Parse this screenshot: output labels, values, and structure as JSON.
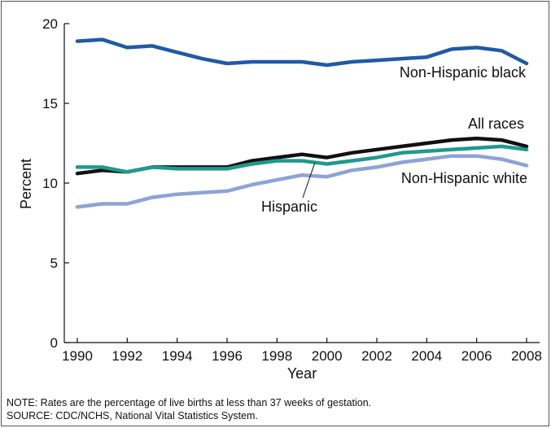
{
  "chart_data": {
    "type": "line",
    "title": "",
    "xlabel": "Year",
    "ylabel": "Percent",
    "xlim": [
      1990,
      2008
    ],
    "ylim": [
      0,
      20
    ],
    "x_ticks": [
      "1990",
      "1992",
      "1994",
      "1996",
      "1998",
      "2000",
      "2002",
      "2004",
      "2006",
      "2008"
    ],
    "y_ticks": [
      "0",
      "5",
      "10",
      "15",
      "20"
    ],
    "grid": false,
    "x": [
      1990,
      1991,
      1992,
      1993,
      1994,
      1995,
      1996,
      1997,
      1998,
      1999,
      2000,
      2001,
      2002,
      2003,
      2004,
      2005,
      2006,
      2007,
      2008
    ],
    "series": [
      {
        "name": "Non-Hispanic black",
        "color": "#1f5aa6",
        "values": [
          18.9,
          19.0,
          18.5,
          18.6,
          18.2,
          17.8,
          17.5,
          17.6,
          17.6,
          17.6,
          17.4,
          17.6,
          17.7,
          17.8,
          17.9,
          18.4,
          18.5,
          18.3,
          17.5
        ]
      },
      {
        "name": "All races",
        "color": "#111111",
        "values": [
          10.6,
          10.8,
          10.7,
          11.0,
          11.0,
          11.0,
          11.0,
          11.4,
          11.6,
          11.8,
          11.6,
          11.9,
          12.1,
          12.3,
          12.5,
          12.7,
          12.8,
          12.7,
          12.3
        ]
      },
      {
        "name": "Hispanic",
        "color": "#1f9a8c",
        "values": [
          11.0,
          11.0,
          10.7,
          11.0,
          10.9,
          10.9,
          10.9,
          11.2,
          11.4,
          11.4,
          11.2,
          11.4,
          11.6,
          11.9,
          12.0,
          12.1,
          12.2,
          12.3,
          12.1
        ]
      },
      {
        "name": "Non-Hispanic white",
        "color": "#8fa3d6",
        "values": [
          8.5,
          8.7,
          8.7,
          9.1,
          9.3,
          9.4,
          9.5,
          9.9,
          10.2,
          10.5,
          10.4,
          10.8,
          11.0,
          11.3,
          11.5,
          11.7,
          11.7,
          11.5,
          11.1
        ]
      }
    ]
  },
  "notes": {
    "note": "NOTE: Rates are the percentage of live births at less than 37 weeks of gestation.",
    "source": "SOURCE: CDC/NCHS, National Vital Statistics System."
  }
}
